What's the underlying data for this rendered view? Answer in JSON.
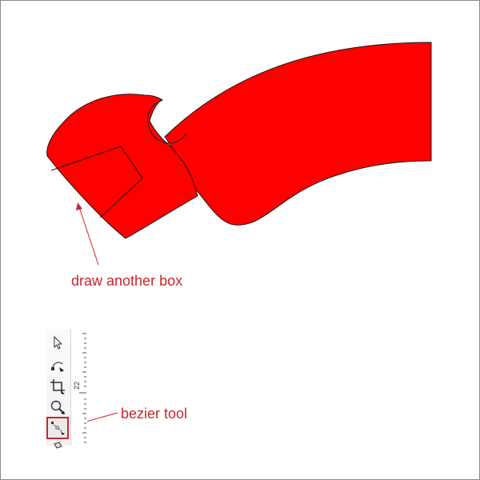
{
  "annotations": {
    "box_label": "draw another box",
    "bezier_label": "bezier tool",
    "color": "#c9262b"
  },
  "shape": {
    "fill": "#ff0000",
    "stroke": "#1a1a1a"
  },
  "toolbar": {
    "tools": [
      {
        "name": "pick-tool",
        "icon": "arrow-pointer-icon"
      },
      {
        "name": "shape-tool",
        "icon": "shape-node-icon"
      },
      {
        "name": "crop-tool",
        "icon": "crop-icon"
      },
      {
        "name": "zoom-tool",
        "icon": "magnifier-icon"
      },
      {
        "name": "bezier-tool",
        "icon": "bezier-curve-icon",
        "active": true
      },
      {
        "name": "smart-fill-tool",
        "icon": "fill-icon"
      }
    ],
    "ruler_label": "22"
  }
}
